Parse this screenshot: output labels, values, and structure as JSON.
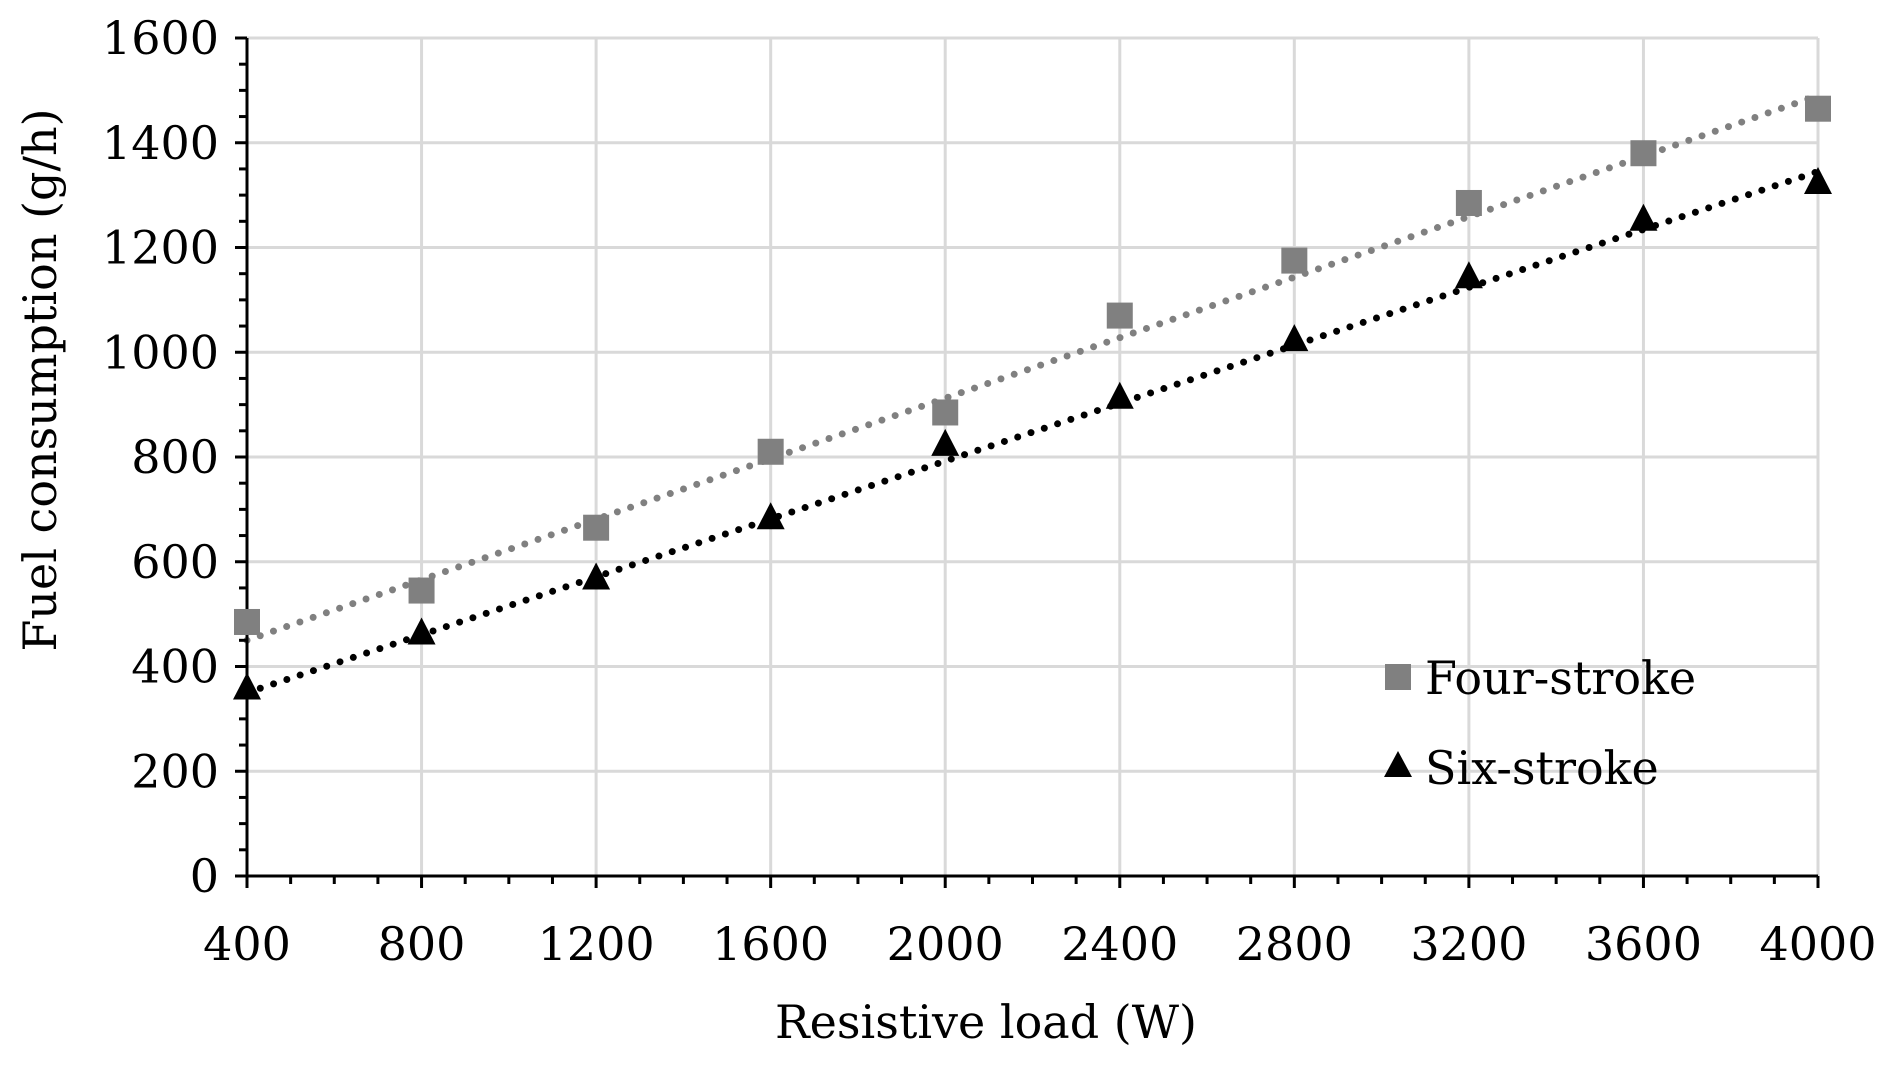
{
  "chart_data": {
    "type": "scatter",
    "title": "",
    "xlabel": "Resistive load (W)",
    "ylabel": "Fuel consumption (g/h)",
    "xlim": [
      400,
      4000
    ],
    "ylim": [
      0,
      1600
    ],
    "xticks": [
      400,
      800,
      1200,
      1600,
      2000,
      2400,
      2800,
      3200,
      3600,
      4000
    ],
    "xtick_labels": [
      "400",
      "800",
      "1200",
      "1600",
      "2000",
      "2400",
      "2800",
      "3200",
      "3600",
      "4000"
    ],
    "yticks": [
      0,
      200,
      400,
      600,
      800,
      1000,
      1200,
      1400,
      1600
    ],
    "ytick_labels": [
      "0",
      "200",
      "400",
      "600",
      "800",
      "1000",
      "1200",
      "1400",
      "1600"
    ],
    "grid": true,
    "legend_position": "bottom-right",
    "x": [
      400,
      800,
      1200,
      1600,
      2000,
      2400,
      2800,
      3200,
      3600,
      4000
    ],
    "series": [
      {
        "name": "Four-stroke",
        "marker": "square",
        "color": "#808080",
        "values": [
          485,
          545,
          665,
          810,
          885,
          1070,
          1175,
          1285,
          1380,
          1465
        ],
        "trendline": {
          "type": "linear",
          "dotted": true,
          "start": [
            400,
            450
          ],
          "end": [
            4000,
            1490
          ]
        }
      },
      {
        "name": "Six-stroke",
        "marker": "triangle",
        "color": "#000000",
        "values": [
          360,
          465,
          570,
          685,
          825,
          915,
          1025,
          1145,
          1255,
          1325
        ],
        "trendline": {
          "type": "linear",
          "dotted": true,
          "start": [
            400,
            350
          ],
          "end": [
            4000,
            1345
          ]
        }
      }
    ]
  }
}
